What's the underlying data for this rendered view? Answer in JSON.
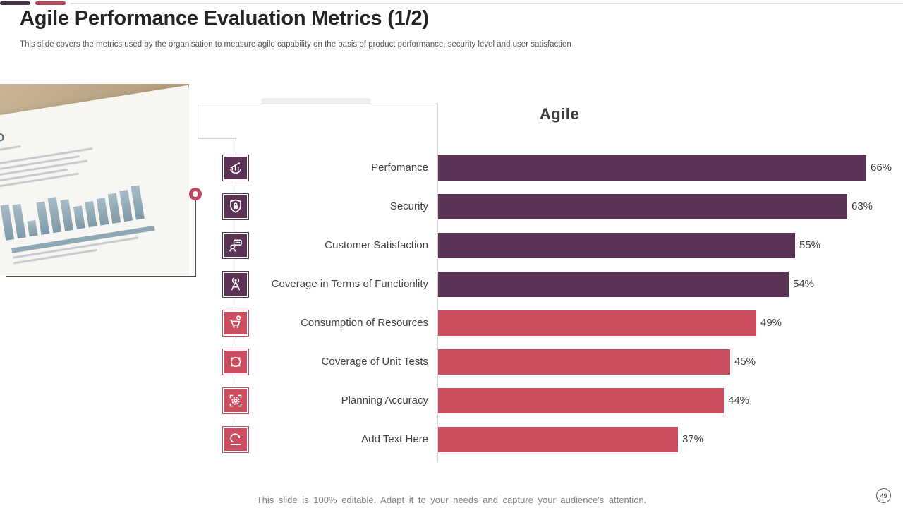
{
  "slide": {
    "title": "Agile Performance Evaluation Metrics (1/2)",
    "subtitle": "This slide covers the metrics used by the organisation to measure agile capability on the basis of product performance, security level and user satisfaction",
    "footer_note": "This slide is 100% editable. Adapt it to your needs and capture your audience's attention.",
    "page_number": "49"
  },
  "photo": {
    "logo": "SATO",
    "description": "printed-report-with-blue-bar-chart-on-wooden-desk",
    "chart_bars": [
      50,
      48,
      22,
      46,
      50,
      44,
      32,
      36,
      38,
      42,
      44,
      48
    ]
  },
  "chart_data": {
    "type": "bar",
    "orientation": "horizontal",
    "title": "Agile",
    "categories": [
      "Perfomance",
      "Security",
      "Customer Satisfaction",
      "Coverage in Terms of Functionlity",
      "Consumption of Resources",
      "Coverage of Unit Tests",
      "Planning Accuracy",
      "Add Text Here"
    ],
    "values": [
      66,
      63,
      55,
      54,
      49,
      45,
      44,
      37
    ],
    "value_labels": [
      "66%",
      "63%",
      "55%",
      "54%",
      "49%",
      "45%",
      "44%",
      "37%"
    ],
    "unit": "%",
    "xlim": [
      0,
      70
    ],
    "grid": false,
    "legend": "none",
    "bar_colors": [
      "#5d3355",
      "#5d3355",
      "#5d3355",
      "#5d3355",
      "#ca4e60",
      "#ca4e60",
      "#ca4e60",
      "#ca4e60"
    ],
    "icons": [
      "performance-chart-icon",
      "security-shield-lock-icon",
      "customer-satisfaction-chat-icon",
      "functionality-antenna-icon",
      "resources-cart-icon",
      "unit-tests-nodes-icon",
      "planning-accuracy-gear-icon",
      "add-text-redo-icon"
    ],
    "icon_symbols": [
      "sym-performance",
      "sym-shield",
      "sym-chat",
      "sym-antenna",
      "sym-cart",
      "sym-nodes",
      "sym-gear",
      "sym-redo"
    ]
  },
  "colors": {
    "purple": "#5d3355",
    "red": "#ca4e60",
    "accent_bar_purple": "#472f4a",
    "accent_bar_red": "#b44b5c",
    "line_gray": "#d8d8d8"
  }
}
